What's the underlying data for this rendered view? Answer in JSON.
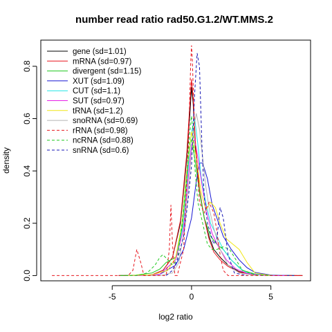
{
  "chart_data": {
    "type": "line",
    "title": "number read ratio rad50.G1.2/WT.MMS.2",
    "xlabel": "log2 ratio",
    "ylabel": "density",
    "xlim": [
      -9.5,
      7.5
    ],
    "ylim": [
      -0.02,
      0.9
    ],
    "x_ticks": [
      -5,
      0,
      5
    ],
    "x_tick_labels": [
      "-5",
      "0",
      "5"
    ],
    "y_ticks": [
      0.0,
      0.2,
      0.4,
      0.6,
      0.8
    ],
    "y_tick_labels": [
      "0.0",
      "0.2",
      "0.4",
      "0.6",
      "0.8"
    ],
    "grid": false,
    "legend_position": "top-left",
    "series": [
      {
        "name": "gene (sd=1.01)",
        "color": "#000000",
        "dash": "solid",
        "x": [
          -4.6,
          -3.5,
          -2.5,
          -1.8,
          -1.2,
          -0.7,
          -0.3,
          -0.1,
          0.0,
          0.1,
          0.25,
          0.5,
          0.8,
          1.1,
          1.4,
          1.8,
          2.3,
          3.0,
          4.0,
          5.5,
          7.0
        ],
        "y": [
          0.0,
          0.0,
          0.003,
          0.02,
          0.07,
          0.2,
          0.45,
          0.62,
          0.72,
          0.66,
          0.48,
          0.32,
          0.22,
          0.15,
          0.1,
          0.07,
          0.04,
          0.015,
          0.004,
          0.0,
          0.0
        ]
      },
      {
        "name": "mRNA (sd=0.97)",
        "color": "#e8141c",
        "dash": "solid",
        "x": [
          -4.6,
          -3.5,
          -2.5,
          -1.8,
          -1.2,
          -0.7,
          -0.3,
          -0.1,
          0.0,
          0.1,
          0.25,
          0.5,
          0.8,
          1.1,
          1.4,
          1.8,
          2.3,
          3.0,
          4.0,
          5.5,
          7.0
        ],
        "y": [
          0.0,
          0.0,
          0.003,
          0.02,
          0.07,
          0.21,
          0.47,
          0.66,
          0.75,
          0.68,
          0.5,
          0.33,
          0.22,
          0.14,
          0.09,
          0.06,
          0.035,
          0.013,
          0.003,
          0.0,
          0.0
        ]
      },
      {
        "name": "divergent (sd=1.15)",
        "color": "#1ec81e",
        "dash": "solid",
        "x": [
          -4.5,
          -3.5,
          -2.5,
          -2.0,
          -1.6,
          -1.3,
          -1.0,
          -0.6,
          -0.3,
          -0.1,
          0.0,
          0.2,
          0.5,
          0.8,
          1.2,
          1.6,
          2.0,
          2.5,
          3.2,
          4.2,
          6.5
        ],
        "y": [
          0.0,
          0.002,
          0.01,
          0.025,
          0.05,
          0.06,
          0.07,
          0.18,
          0.38,
          0.5,
          0.52,
          0.45,
          0.32,
          0.22,
          0.15,
          0.12,
          0.1,
          0.06,
          0.02,
          0.003,
          0.0
        ]
      },
      {
        "name": "XUT (sd=1.09)",
        "color": "#1414d2",
        "dash": "solid",
        "x": [
          -4.0,
          -3.0,
          -2.0,
          -1.0,
          -0.5,
          0.0,
          0.3,
          0.5,
          0.7,
          1.0,
          1.3,
          1.6,
          2.0,
          2.5,
          3.0,
          3.5,
          4.0,
          5.0,
          6.5
        ],
        "y": [
          0.0,
          0.0,
          0.005,
          0.04,
          0.1,
          0.22,
          0.36,
          0.43,
          0.43,
          0.37,
          0.27,
          0.22,
          0.15,
          0.1,
          0.06,
          0.03,
          0.012,
          0.002,
          0.0
        ]
      },
      {
        "name": "CUT (sd=1.1)",
        "color": "#1ee6e6",
        "dash": "solid",
        "x": [
          -4.0,
          -3.0,
          -2.0,
          -1.0,
          -0.5,
          -0.2,
          0.0,
          0.2,
          0.4,
          0.6,
          0.9,
          1.2,
          1.6,
          2.0,
          2.5,
          3.0,
          3.5,
          4.5,
          6.0
        ],
        "y": [
          0.0,
          0.0,
          0.005,
          0.06,
          0.2,
          0.42,
          0.55,
          0.6,
          0.5,
          0.38,
          0.28,
          0.2,
          0.15,
          0.1,
          0.06,
          0.03,
          0.01,
          0.002,
          0.0
        ]
      },
      {
        "name": "SUT (sd=0.97)",
        "color": "#e61ee6",
        "dash": "solid",
        "x": [
          -4.0,
          -3.0,
          -2.0,
          -1.0,
          -0.5,
          -0.2,
          0.0,
          0.2,
          0.4,
          0.7,
          1.0,
          1.3,
          1.7,
          2.2,
          2.8,
          3.5,
          4.5,
          6.0
        ],
        "y": [
          0.0,
          0.0,
          0.005,
          0.06,
          0.18,
          0.38,
          0.5,
          0.52,
          0.45,
          0.33,
          0.23,
          0.16,
          0.11,
          0.06,
          0.025,
          0.008,
          0.001,
          0.0
        ]
      },
      {
        "name": "tRNA (sd=1.2)",
        "color": "#f0e614",
        "dash": "solid",
        "x": [
          -4.0,
          -2.5,
          -1.5,
          -1.0,
          -0.6,
          -0.3,
          0.0,
          0.3,
          0.6,
          0.9,
          1.2,
          1.5,
          1.8,
          2.2,
          2.6,
          3.0,
          3.5,
          4.0,
          5.0
        ],
        "y": [
          0.0,
          0.003,
          0.02,
          0.07,
          0.2,
          0.4,
          0.55,
          0.45,
          0.32,
          0.25,
          0.28,
          0.26,
          0.2,
          0.14,
          0.12,
          0.1,
          0.05,
          0.01,
          0.0
        ]
      },
      {
        "name": "snoRNA (sd=0.69)",
        "color": "#b4b4b4",
        "dash": "solid",
        "x": [
          -3.0,
          -2.0,
          -1.2,
          -0.8,
          -0.4,
          -0.1,
          0.1,
          0.3,
          0.5,
          0.7,
          0.9,
          1.1,
          1.4,
          1.8,
          2.3,
          3.0,
          4.0
        ],
        "y": [
          0.0,
          0.0,
          0.01,
          0.05,
          0.2,
          0.4,
          0.55,
          0.62,
          0.56,
          0.45,
          0.34,
          0.26,
          0.18,
          0.1,
          0.04,
          0.01,
          0.0
        ]
      },
      {
        "name": "rRNA (sd=0.98)",
        "color": "#e8141c",
        "dash": "dashed",
        "x": [
          -8.8,
          -5.0,
          -4.0,
          -3.7,
          -3.45,
          -3.2,
          -3.0,
          -2.5,
          -1.6,
          -1.4,
          -1.3,
          -1.2,
          -1.05,
          -0.9,
          -0.5,
          -0.2,
          -0.05,
          0.0,
          0.05,
          0.2,
          0.5,
          0.8,
          1.1,
          1.4,
          1.6,
          1.8,
          2.0,
          2.3,
          2.8,
          3.5,
          4.5,
          7.0
        ],
        "y": [
          0.0,
          0.0,
          0.0,
          0.02,
          0.1,
          0.05,
          0.0,
          0.0,
          0.0,
          0.1,
          0.27,
          0.12,
          0.0,
          0.0,
          0.1,
          0.5,
          0.82,
          0.88,
          0.82,
          0.55,
          0.28,
          0.24,
          0.28,
          0.24,
          0.17,
          0.08,
          0.02,
          0.0,
          0.0,
          0.0,
          0.0,
          0.0
        ]
      },
      {
        "name": "ncRNA (sd=0.88)",
        "color": "#1ec81e",
        "dash": "dashed",
        "x": [
          -4.5,
          -3.5,
          -2.8,
          -2.3,
          -2.0,
          -1.8,
          -1.5,
          -1.2,
          -0.9,
          -0.6,
          -0.3,
          -0.1,
          0.0,
          0.1,
          0.2,
          0.4,
          0.7,
          1.0,
          1.3,
          1.6,
          2.0,
          2.4,
          2.8,
          3.2,
          4.0,
          5.0
        ],
        "y": [
          0.0,
          0.0,
          0.01,
          0.04,
          0.07,
          0.08,
          0.06,
          0.04,
          0.06,
          0.2,
          0.38,
          0.55,
          0.61,
          0.55,
          0.42,
          0.28,
          0.2,
          0.12,
          0.1,
          0.1,
          0.11,
          0.1,
          0.06,
          0.02,
          0.003,
          0.0
        ]
      },
      {
        "name": "snRNA (sd=0.6)",
        "color": "#1414b4",
        "dash": "dashed",
        "x": [
          -1.6,
          -1.2,
          -0.9,
          -0.5,
          -0.2,
          0.0,
          0.2,
          0.35,
          0.5,
          0.65,
          0.8,
          1.0,
          1.2,
          1.4,
          1.6,
          1.8,
          2.0,
          2.3,
          2.7,
          3.5
        ],
        "y": [
          0.0,
          0.02,
          0.06,
          0.15,
          0.3,
          0.42,
          0.7,
          0.85,
          0.8,
          0.5,
          0.3,
          0.2,
          0.16,
          0.12,
          0.14,
          0.26,
          0.22,
          0.08,
          0.01,
          0.0
        ]
      }
    ]
  }
}
